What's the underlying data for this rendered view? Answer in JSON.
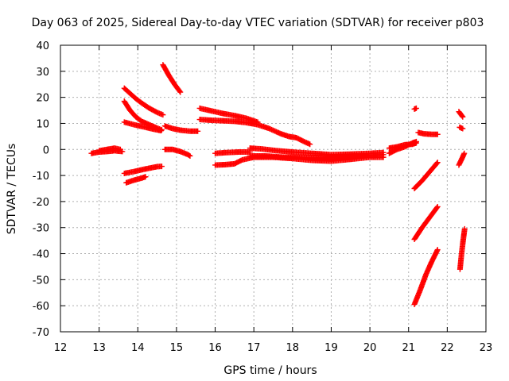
{
  "chart_data": {
    "type": "scatter",
    "title": "Day 063 of 2025, Sidereal Day-to-day VTEC variation (SDTVAR) for receiver p803",
    "xlabel": "GPS time / hours",
    "ylabel": "SDTVAR / TECUs",
    "xlim": [
      12,
      23
    ],
    "ylim": [
      -70,
      40
    ],
    "xticks": [
      12,
      13,
      14,
      15,
      16,
      17,
      18,
      19,
      20,
      21,
      22,
      23
    ],
    "yticks": [
      -70,
      -60,
      -50,
      -40,
      -30,
      -20,
      -10,
      0,
      10,
      20,
      30,
      40
    ],
    "grid": true,
    "marker": "+",
    "color": "#ff0000",
    "segments": [
      [
        [
          12.8,
          -1.5
        ],
        [
          13.0,
          -1.0
        ],
        [
          13.2,
          -0.8
        ],
        [
          13.4,
          -0.5
        ],
        [
          13.6,
          -0.8
        ]
      ],
      [
        [
          13.0,
          -0.5
        ],
        [
          13.2,
          0.0
        ],
        [
          13.4,
          0.5
        ],
        [
          13.55,
          0.0
        ]
      ],
      [
        [
          13.65,
          23.5
        ],
        [
          13.8,
          21.5
        ],
        [
          13.95,
          19.5
        ],
        [
          14.1,
          17.8
        ],
        [
          14.3,
          15.8
        ],
        [
          14.5,
          14.2
        ],
        [
          14.65,
          13.3
        ]
      ],
      [
        [
          13.65,
          18.5
        ],
        [
          13.8,
          15.0
        ],
        [
          13.95,
          12.5
        ],
        [
          14.1,
          10.8
        ],
        [
          14.3,
          9.5
        ],
        [
          14.5,
          8.2
        ],
        [
          14.62,
          7.5
        ]
      ],
      [
        [
          13.65,
          10.5
        ],
        [
          13.9,
          9.5
        ],
        [
          14.2,
          8.5
        ],
        [
          14.4,
          7.8
        ],
        [
          14.6,
          7.2
        ]
      ],
      [
        [
          13.65,
          -9.2
        ],
        [
          13.9,
          -8.5
        ],
        [
          14.1,
          -7.8
        ],
        [
          14.3,
          -7.2
        ],
        [
          14.5,
          -6.6
        ],
        [
          14.62,
          -6.5
        ]
      ],
      [
        [
          13.7,
          -12.8
        ],
        [
          13.9,
          -11.8
        ],
        [
          14.1,
          -11.0
        ],
        [
          14.2,
          -10.5
        ]
      ],
      [
        [
          14.65,
          32.5
        ],
        [
          14.8,
          28.5
        ],
        [
          14.95,
          25.0
        ],
        [
          15.1,
          22.0
        ]
      ],
      [
        [
          14.7,
          9.0
        ],
        [
          14.9,
          8.0
        ],
        [
          15.1,
          7.4
        ],
        [
          15.35,
          7.0
        ],
        [
          15.55,
          7.0
        ]
      ],
      [
        [
          14.7,
          0.0
        ],
        [
          14.9,
          0.0
        ],
        [
          15.1,
          -0.8
        ],
        [
          15.3,
          -2.0
        ],
        [
          15.35,
          -2.5
        ]
      ],
      [
        [
          15.6,
          15.8
        ],
        [
          15.9,
          14.8
        ],
        [
          16.2,
          13.8
        ],
        [
          16.5,
          13.0
        ],
        [
          16.8,
          12.0
        ],
        [
          17.1,
          10.5
        ]
      ],
      [
        [
          15.6,
          11.5
        ],
        [
          15.9,
          11.2
        ],
        [
          16.2,
          11.0
        ],
        [
          16.5,
          10.8
        ],
        [
          16.8,
          10.3
        ],
        [
          17.1,
          9.5
        ],
        [
          17.4,
          8.0
        ],
        [
          17.7,
          6.0
        ],
        [
          17.9,
          5.0
        ],
        [
          18.1,
          4.5
        ],
        [
          18.3,
          3.0
        ],
        [
          18.45,
          2.0
        ]
      ],
      [
        [
          16.0,
          -1.5
        ],
        [
          16.3,
          -1.2
        ],
        [
          16.6,
          -1.0
        ],
        [
          16.9,
          -1.0
        ]
      ],
      [
        [
          16.0,
          -6.0
        ],
        [
          16.3,
          -5.8
        ],
        [
          16.5,
          -5.5
        ],
        [
          16.7,
          -4.0
        ],
        [
          17.0,
          -3.0
        ],
        [
          17.5,
          -3.0
        ],
        [
          18.0,
          -3.5
        ],
        [
          18.5,
          -4.2
        ],
        [
          19.0,
          -4.5
        ],
        [
          19.5,
          -3.8
        ],
        [
          20.0,
          -3.0
        ],
        [
          20.35,
          -3.0
        ]
      ],
      [
        [
          16.9,
          0.5
        ],
        [
          17.2,
          0.2
        ],
        [
          17.6,
          -0.5
        ],
        [
          18.0,
          -1.0
        ],
        [
          18.5,
          -1.5
        ],
        [
          19.0,
          -2.0
        ],
        [
          19.5,
          -1.8
        ],
        [
          20.0,
          -1.5
        ],
        [
          20.35,
          -1.2
        ]
      ],
      [
        [
          16.9,
          -2.5
        ],
        [
          17.3,
          -2.5
        ],
        [
          17.8,
          -3.0
        ],
        [
          18.3,
          -3.0
        ],
        [
          18.8,
          -3.2
        ],
        [
          19.3,
          -3.0
        ],
        [
          19.8,
          -2.5
        ],
        [
          20.35,
          -2.0
        ]
      ],
      [
        [
          20.5,
          -1.5
        ],
        [
          20.7,
          0.0
        ],
        [
          20.9,
          1.0
        ],
        [
          21.1,
          2.5
        ],
        [
          21.2,
          3.0
        ]
      ],
      [
        [
          20.5,
          0.5
        ],
        [
          20.7,
          1.0
        ],
        [
          20.9,
          1.8
        ],
        [
          21.1,
          2.0
        ],
        [
          21.2,
          2.5
        ]
      ],
      [
        [
          21.15,
          15.5
        ],
        [
          21.2,
          15.8
        ]
      ],
      [
        [
          21.25,
          6.5
        ],
        [
          21.4,
          6.0
        ],
        [
          21.6,
          5.8
        ],
        [
          21.75,
          5.8
        ]
      ],
      [
        [
          21.15,
          -15.0
        ],
        [
          21.35,
          -12.0
        ],
        [
          21.55,
          -8.5
        ],
        [
          21.75,
          -5.0
        ]
      ],
      [
        [
          21.15,
          -34.5
        ],
        [
          21.35,
          -30.0
        ],
        [
          21.55,
          -26.0
        ],
        [
          21.75,
          -22.0
        ]
      ],
      [
        [
          21.15,
          -59.5
        ],
        [
          21.3,
          -54.0
        ],
        [
          21.45,
          -48.0
        ],
        [
          21.6,
          -43.0
        ],
        [
          21.75,
          -38.5
        ]
      ],
      [
        [
          22.3,
          14.5
        ],
        [
          22.4,
          12.5
        ]
      ],
      [
        [
          22.32,
          8.5
        ],
        [
          22.4,
          8.0
        ]
      ],
      [
        [
          22.3,
          -6.0
        ],
        [
          22.38,
          -3.5
        ],
        [
          22.44,
          -1.5
        ]
      ],
      [
        [
          22.33,
          -46.0
        ],
        [
          22.37,
          -40.0
        ],
        [
          22.41,
          -35.0
        ],
        [
          22.45,
          -30.5
        ]
      ]
    ]
  }
}
